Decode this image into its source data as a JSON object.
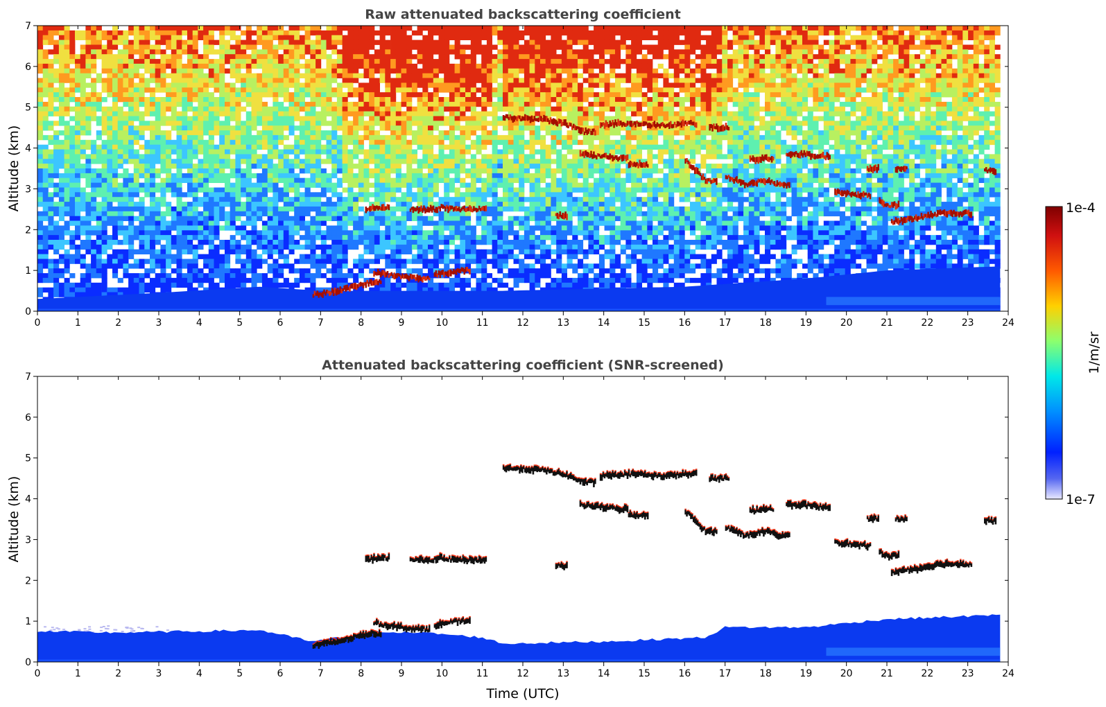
{
  "chart_data": [
    {
      "type": "heatmap",
      "panel": "top",
      "title": "Raw attenuated backscattering coefficient",
      "xlabel": "",
      "ylabel": "Altitude (km)",
      "xlim": [
        0,
        24
      ],
      "ylim": [
        0,
        7
      ],
      "xticks": [
        0,
        1,
        2,
        3,
        4,
        5,
        6,
        7,
        8,
        9,
        10,
        11,
        12,
        13,
        14,
        15,
        16,
        17,
        18,
        19,
        20,
        21,
        22,
        23,
        24
      ],
      "yticks": [
        0,
        1,
        2,
        3,
        4,
        5,
        6,
        7
      ],
      "data_end_hour": 23.8,
      "noise_gradient": "low altitude blue, increasing noise with height, green/yellow above 5 km, red noise 7.5–11 UTC above 4 km",
      "boundary_layer": [
        {
          "t": 0,
          "top": 0.3
        },
        {
          "t": 3,
          "top": 0.45
        },
        {
          "t": 5.5,
          "top": 0.6
        },
        {
          "t": 7,
          "top": 0.5
        },
        {
          "t": 11.5,
          "top": 0.5
        },
        {
          "t": 16,
          "top": 0.6
        },
        {
          "t": 19,
          "top": 0.8
        },
        {
          "t": 21,
          "top": 1.0
        },
        {
          "t": 23.8,
          "top": 1.1
        }
      ],
      "cloud_layers": [
        {
          "t": [
            6.8,
            7.4,
            7.8,
            8.2
          ],
          "alt": [
            0.4,
            0.5,
            0.6,
            0.7
          ]
        },
        {
          "t": [
            8.3,
            8.6,
            9.0,
            9.4
          ],
          "alt": [
            0.95,
            0.9,
            0.85,
            0.8
          ]
        },
        {
          "t": [
            9.8,
            10.1,
            10.4
          ],
          "alt": [
            0.9,
            0.95,
            1.0
          ]
        },
        {
          "t": [
            8.1,
            8.4
          ],
          "alt": [
            2.5,
            2.55
          ]
        },
        {
          "t": [
            9.2,
            9.6
          ],
          "alt": [
            2.5,
            2.5
          ]
        },
        {
          "t": [
            9.9,
            10.3
          ],
          "alt": [
            2.55,
            2.5
          ]
        },
        {
          "t": [
            10.6,
            10.8
          ],
          "alt": [
            2.5,
            2.5
          ]
        },
        {
          "t": [
            11.5,
            12.5,
            13.0,
            13.5
          ],
          "alt": [
            4.75,
            4.7,
            4.6,
            4.4
          ]
        },
        {
          "t": [
            13.4,
            13.9,
            14.3
          ],
          "alt": [
            3.85,
            3.8,
            3.75
          ]
        },
        {
          "t": [
            14.6,
            14.8
          ],
          "alt": [
            3.6,
            3.6
          ]
        },
        {
          "t": [
            13.9,
            14.3,
            14.6
          ],
          "alt": [
            4.55,
            4.6,
            4.6
          ]
        },
        {
          "t": [
            14.9,
            15.4,
            16.0
          ],
          "alt": [
            4.6,
            4.55,
            4.6
          ]
        },
        {
          "t": [
            16.0,
            16.3,
            16.5
          ],
          "alt": [
            3.7,
            3.4,
            3.2
          ]
        },
        {
          "t": [
            16.6,
            16.8
          ],
          "alt": [
            4.5,
            4.5
          ]
        },
        {
          "t": [
            17.0,
            17.5,
            18.0,
            18.3
          ],
          "alt": [
            3.3,
            3.1,
            3.2,
            3.1
          ]
        },
        {
          "t": [
            17.6,
            17.9
          ],
          "alt": [
            3.7,
            3.75
          ]
        },
        {
          "t": [
            18.5,
            18.9,
            19.3
          ],
          "alt": [
            3.85,
            3.85,
            3.8
          ]
        },
        {
          "t": [
            19.7,
            20.0,
            20.3
          ],
          "alt": [
            2.95,
            2.9,
            2.85
          ]
        },
        {
          "t": [
            20.5
          ],
          "alt": [
            3.5
          ]
        },
        {
          "t": [
            20.8,
            21.0
          ],
          "alt": [
            2.7,
            2.6
          ]
        },
        {
          "t": [
            21.1,
            21.8,
            22.3,
            22.8
          ],
          "alt": [
            2.2,
            2.3,
            2.4,
            2.4
          ]
        },
        {
          "t": [
            21.2
          ],
          "alt": [
            3.5
          ]
        },
        {
          "t": [
            23.4
          ],
          "alt": [
            3.45
          ]
        },
        {
          "t": [
            12.8
          ],
          "alt": [
            2.35
          ]
        }
      ]
    },
    {
      "type": "heatmap",
      "panel": "bottom",
      "title": "Attenuated backscattering coefficient (SNR-screened)",
      "xlabel": "Time (UTC)",
      "ylabel": "Altitude (km)",
      "xlim": [
        0,
        24
      ],
      "ylim": [
        0,
        7
      ],
      "xticks": [
        0,
        1,
        2,
        3,
        4,
        5,
        6,
        7,
        8,
        9,
        10,
        11,
        12,
        13,
        14,
        15,
        16,
        17,
        18,
        19,
        20,
        21,
        22,
        23,
        24
      ],
      "yticks": [
        0,
        1,
        2,
        3,
        4,
        5,
        6,
        7
      ],
      "data_end_hour": 23.8,
      "boundary_layer": [
        {
          "t": 0,
          "top": 0.75
        },
        {
          "t": 2,
          "top": 0.72
        },
        {
          "t": 5.5,
          "top": 0.78
        },
        {
          "t": 6.8,
          "top": 0.5
        },
        {
          "t": 8.5,
          "top": 0.75
        },
        {
          "t": 9.8,
          "top": 0.7
        },
        {
          "t": 11.0,
          "top": 0.6
        },
        {
          "t": 11.5,
          "top": 0.45
        },
        {
          "t": 14,
          "top": 0.5
        },
        {
          "t": 16.5,
          "top": 0.6
        },
        {
          "t": 17,
          "top": 0.85
        },
        {
          "t": 19,
          "top": 0.85
        },
        {
          "t": 21,
          "top": 1.05
        },
        {
          "t": 23.8,
          "top": 1.15
        }
      ],
      "note": "cloud layers identical to top panel, rendered with black cores"
    }
  ],
  "colorbar": {
    "label": "1/m/sr",
    "max_label": "1e-4",
    "min_label": "1e-7",
    "colors": [
      "#8b0000",
      "#d42000",
      "#ff4500",
      "#ff8c00",
      "#ffc000",
      "#ffff00",
      "#b0ff40",
      "#40ffb0",
      "#00e0ff",
      "#00a0ff",
      "#0060ff",
      "#0020ff",
      "#1010e0",
      "#6070e8",
      "#b0b0f0",
      "#e6e6ff"
    ]
  }
}
